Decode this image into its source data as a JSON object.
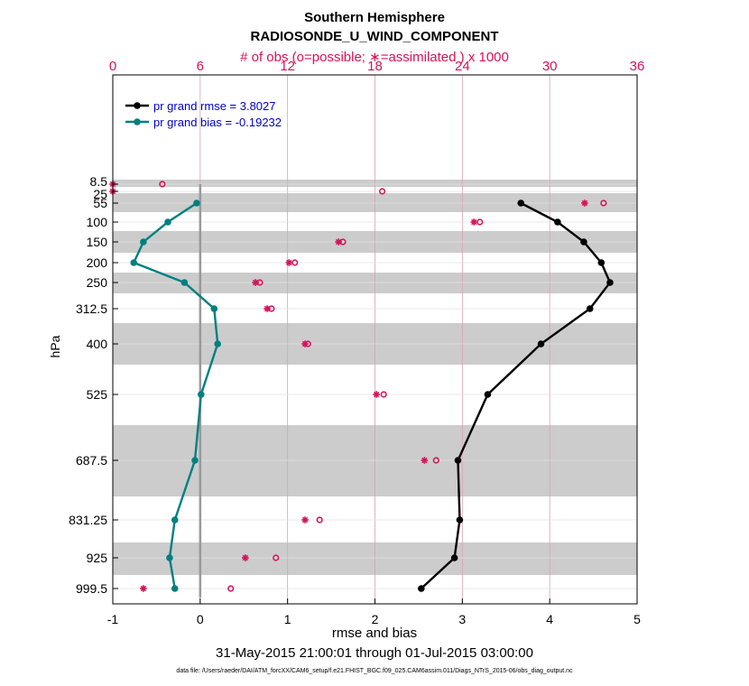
{
  "chart_data": {
    "type": "line",
    "title": "Southern Hemisphere",
    "subtitle": "RADIOSONDE_U_WIND_COMPONENT",
    "top_axis_label": "# of obs (o=possible; ∗=assimilated ) x 1000",
    "xlabel": "rmse and bias",
    "ylabel": "hPa",
    "date_range": "31-May-2015 21:00:01 through 01-Jul-2015 03:00:00",
    "data_file": "data file: /Users/raeder/DAI/ATM_forcXX/CAM6_setup/f.e21.FHIST_BGC.f09_025.CAM6assim.011/Diags_NTrS_2015-06/obs_diag_output.nc",
    "xlim": [
      -1,
      5
    ],
    "x_ticks": [
      -1,
      0,
      1,
      2,
      3,
      4,
      5
    ],
    "top_xlim": [
      0,
      36
    ],
    "top_ticks": [
      0,
      6,
      12,
      18,
      24,
      30,
      36
    ],
    "y_levels": [
      8.5,
      25,
      55,
      100,
      150,
      200,
      250,
      312.5,
      400,
      525,
      687.5,
      831.25,
      925,
      999.5
    ],
    "y_tick_labels": [
      "8.5",
      "25",
      "55",
      "100",
      "150",
      "200",
      "250",
      "312.5",
      "400",
      "525",
      "687.5",
      "831.25",
      "925",
      "999.5"
    ],
    "series": [
      {
        "name": "pr grand rmse = 3.8027",
        "color": "#000000",
        "levels": [
          55,
          100,
          150,
          200,
          250,
          312.5,
          400,
          525,
          687.5,
          831.25,
          925,
          999.5
        ],
        "values": [
          3.67,
          4.09,
          4.39,
          4.59,
          4.69,
          4.46,
          3.9,
          3.29,
          2.95,
          2.97,
          2.91,
          2.53
        ]
      },
      {
        "name": "pr grand bias = -0.19232",
        "color": "#008080",
        "levels": [
          55,
          100,
          150,
          200,
          250,
          312.5,
          400,
          525,
          687.5,
          831.25,
          925,
          999.5
        ],
        "values": [
          -0.04,
          -0.37,
          -0.65,
          -0.76,
          -0.18,
          0.16,
          0.2,
          0.01,
          -0.06,
          -0.29,
          -0.35,
          -0.29
        ]
      }
    ],
    "obs_possible": {
      "levels": [
        8.5,
        25,
        55,
        100,
        150,
        200,
        250,
        312.5,
        400,
        525,
        687.5,
        831.25,
        925,
        999.5
      ],
      "values": [
        3.4,
        18.5,
        33.7,
        25.2,
        15.8,
        12.5,
        10.1,
        10.9,
        13.4,
        18.6,
        22.2,
        14.2,
        11.2,
        8.1
      ]
    },
    "obs_assimilated": {
      "levels": [
        8.5,
        25,
        55,
        100,
        150,
        200,
        250,
        312.5,
        400,
        525,
        687.5,
        831.25,
        925,
        999.5
      ],
      "values": [
        0.0,
        0.0,
        32.4,
        24.8,
        15.5,
        12.1,
        9.8,
        10.6,
        13.2,
        18.1,
        21.4,
        13.2,
        9.1,
        2.1
      ]
    },
    "grid": true,
    "legend_position": "top-left",
    "colors": {
      "rmse": "#000000",
      "bias": "#008080",
      "obs": "#d4145a",
      "legend_text": "#0000cc",
      "band": "#cccccc",
      "grid": "#d9a0b4"
    }
  }
}
